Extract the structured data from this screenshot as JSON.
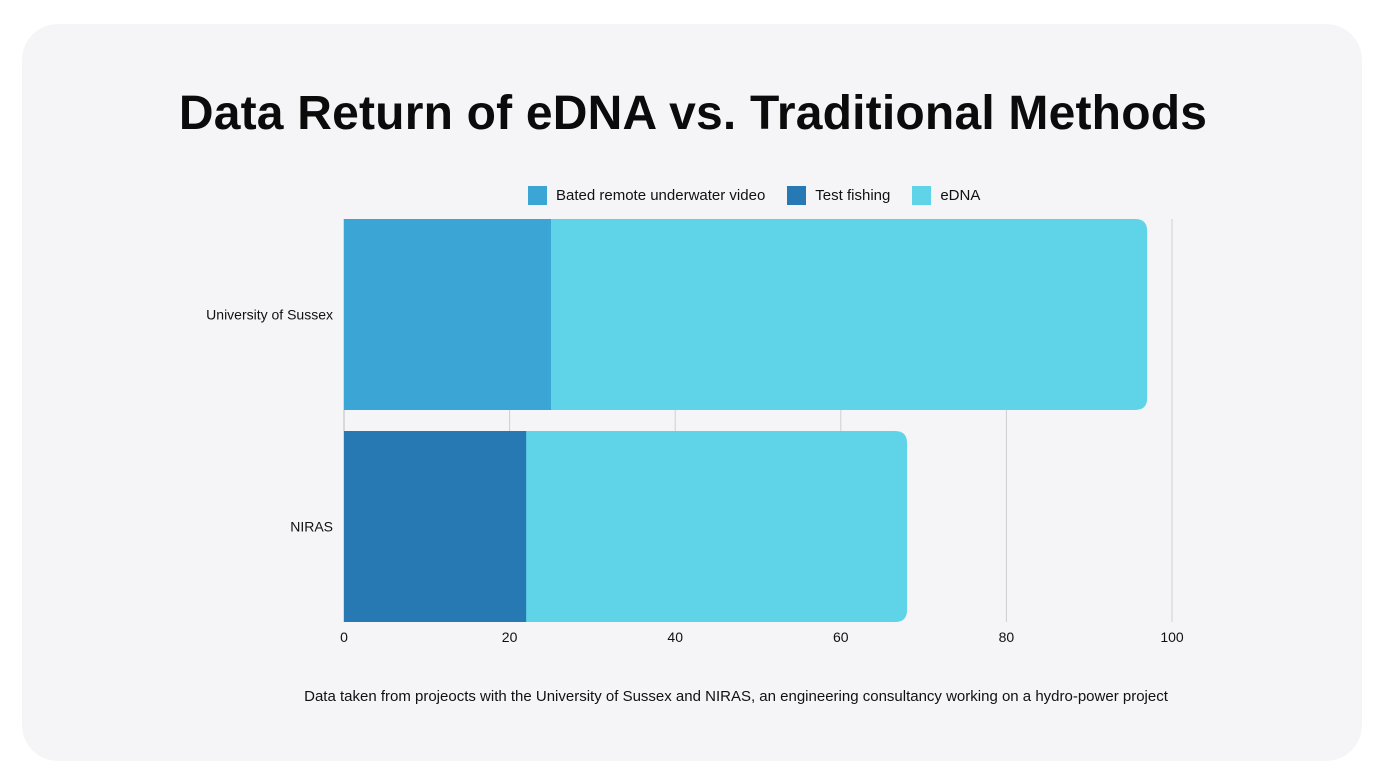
{
  "chart_data": {
    "type": "bar",
    "orientation": "horizontal",
    "stacked": true,
    "title": "Data Return of eDNA vs. Traditional Methods",
    "categories": [
      "University of Sussex",
      "NIRAS"
    ],
    "series": [
      {
        "name": "Bated remote underwater video",
        "color": "#3ba6d5",
        "values": [
          25,
          0
        ]
      },
      {
        "name": "Test fishing",
        "color": "#2779b3",
        "values": [
          0,
          22
        ]
      },
      {
        "name": "eDNA",
        "color": "#5fd4e8",
        "values": [
          72,
          46
        ]
      }
    ],
    "xlim": [
      0,
      100
    ],
    "xticks": [
      "0",
      "20",
      "40",
      "60",
      "80",
      "100"
    ],
    "grid": "vertical",
    "legend_position": "top",
    "footnote": "Data taken from projeocts with the University of Sussex and NIRAS, an engineering consultancy working on a hydro-power project"
  }
}
